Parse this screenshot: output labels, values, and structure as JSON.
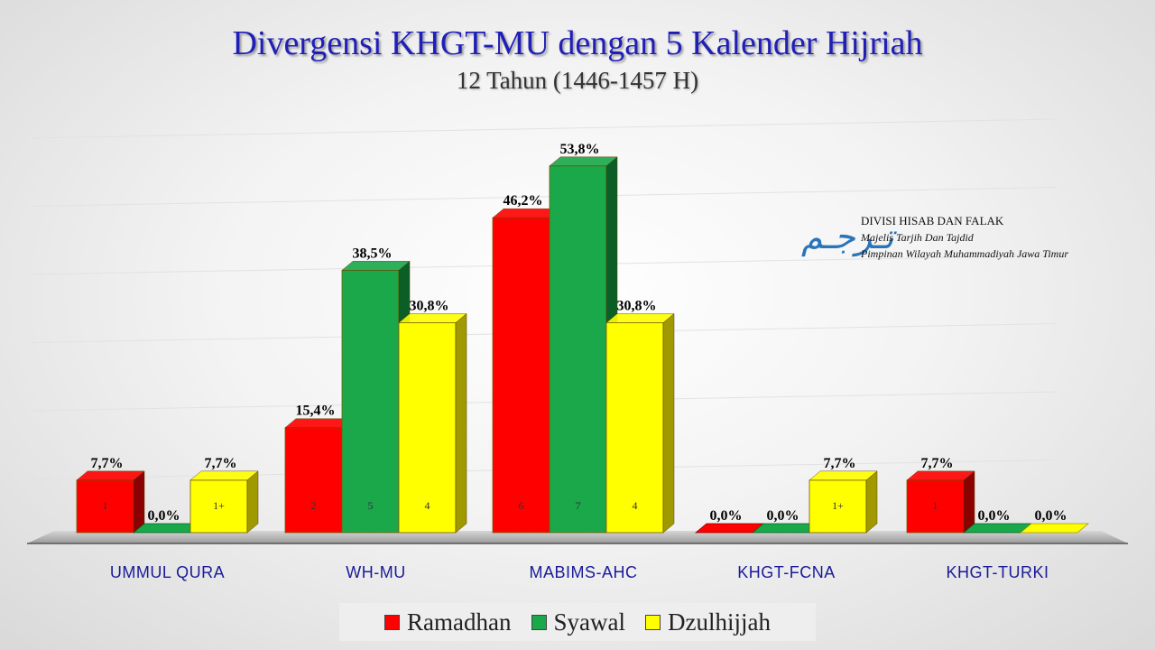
{
  "title": "Divergensi KHGT-MU dengan 5 Kalender Hijriah",
  "subtitle": "12 Tahun (1446-1457 H)",
  "org": {
    "line1": "DIVISI HISAB DAN FALAK",
    "line2": "Majelis Tarjih Dan Tajdid",
    "line3": "Pimpinan Wilayah Muhammadiyah Jawa Timur",
    "logo_icon": "arabic-calligraphy-logo"
  },
  "chart_data": {
    "type": "bar",
    "categories": [
      "UMMUL QURA",
      "WH-MU",
      "MABIMS-AHC",
      "KHGT-FCNA",
      "KHGT-TURKI"
    ],
    "series": [
      {
        "name": "Ramadhan",
        "color": "#ff0000",
        "side_color": "#8b0000",
        "values": [
          7.7,
          15.4,
          46.2,
          0.0,
          7.7
        ],
        "labels": [
          "7,7%",
          "15,4%",
          "46,2%",
          "0,0%",
          "7,7%"
        ],
        "counts": [
          "1",
          "2",
          "6",
          "",
          "1"
        ]
      },
      {
        "name": "Syawal",
        "color": "#1aa84a",
        "side_color": "#0b5e26",
        "values": [
          0.0,
          38.5,
          53.8,
          0.0,
          0.0
        ],
        "labels": [
          "0,0%",
          "38,5%",
          "53,8%",
          "0,0%",
          "0,0%"
        ],
        "counts": [
          "",
          "5",
          "7",
          "",
          ""
        ]
      },
      {
        "name": "Dzulhijjah",
        "color": "#ffff00",
        "side_color": "#a09a00",
        "values": [
          7.7,
          30.8,
          30.8,
          7.7,
          0.0
        ],
        "labels": [
          "7,7%",
          "30,8%",
          "30,8%",
          "7,7%",
          "0,0%"
        ],
        "counts": [
          "1+",
          "4",
          "4",
          "1+",
          ""
        ]
      }
    ],
    "ylim": [
      0,
      60
    ],
    "grid": true,
    "legend": "bottom"
  }
}
